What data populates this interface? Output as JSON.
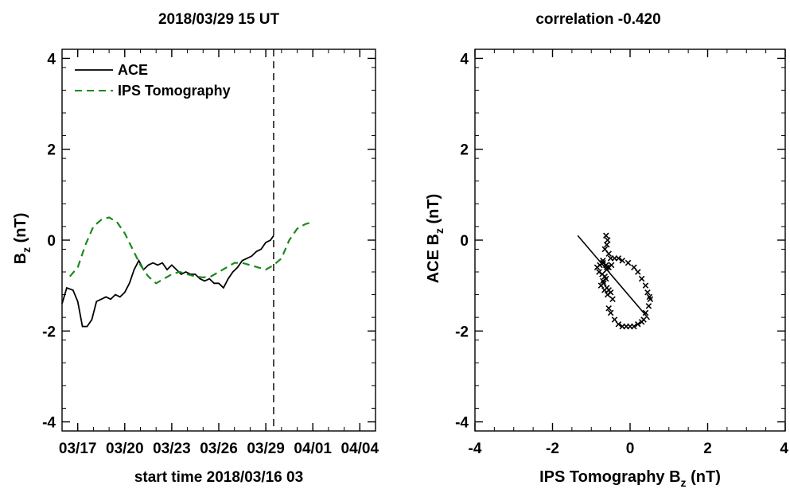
{
  "chart_data": [
    {
      "type": "line",
      "title": "2018/03/29 15 UT",
      "xlabel": "start time 2018/03/16 03",
      "ylabel": {
        "text": "B",
        "sub": "z",
        "unit": " (nT)"
      },
      "xlim": [
        0,
        20
      ],
      "ylim": [
        -4.2,
        4.2
      ],
      "x_tick_labels": [
        "03/17",
        "03/20",
        "03/23",
        "03/26",
        "03/29",
        "04/01",
        "04/04"
      ],
      "x_tick_values": [
        1,
        4,
        7,
        10,
        13,
        16,
        19
      ],
      "y_ticks": [
        -4,
        -2,
        0,
        2,
        4
      ],
      "marker_day": 13.5,
      "legend_position": "top-left",
      "series": [
        {
          "name": "ACE",
          "color": "#000000",
          "style": "solid",
          "x": [
            0,
            0.3,
            0.7,
            1.0,
            1.3,
            1.6,
            1.9,
            2.2,
            2.5,
            2.8,
            3.1,
            3.4,
            3.7,
            4.0,
            4.3,
            4.6,
            4.9,
            5.2,
            5.5,
            5.8,
            6.1,
            6.4,
            6.7,
            7.0,
            7.3,
            7.6,
            7.9,
            8.2,
            8.5,
            8.8,
            9.1,
            9.4,
            9.7,
            10.0,
            10.3,
            10.6,
            10.9,
            11.2,
            11.5,
            11.8,
            12.1,
            12.4,
            12.7,
            13.0,
            13.3,
            13.5
          ],
          "y": [
            -1.4,
            -1.05,
            -1.1,
            -1.35,
            -1.9,
            -1.9,
            -1.75,
            -1.35,
            -1.3,
            -1.25,
            -1.3,
            -1.2,
            -1.25,
            -1.15,
            -0.95,
            -0.65,
            -0.45,
            -0.65,
            -0.55,
            -0.5,
            -0.55,
            -0.5,
            -0.65,
            -0.55,
            -0.65,
            -0.75,
            -0.7,
            -0.75,
            -0.75,
            -0.85,
            -0.9,
            -0.85,
            -0.95,
            -0.95,
            -1.05,
            -0.85,
            -0.7,
            -0.6,
            -0.45,
            -0.4,
            -0.35,
            -0.25,
            -0.2,
            -0.05,
            0.0,
            0.1
          ]
        },
        {
          "name": "IPS Tomography",
          "color": "#1a8a1a",
          "style": "dashed",
          "x": [
            0.5,
            1.0,
            1.5,
            2.0,
            2.5,
            3.0,
            3.5,
            4.0,
            4.5,
            5.0,
            5.5,
            6.0,
            6.5,
            7.0,
            7.5,
            8.0,
            8.5,
            9.0,
            9.5,
            10.0,
            10.5,
            11.0,
            11.5,
            12.0,
            12.5,
            13.0,
            13.5,
            14.0,
            14.5,
            15.0,
            15.5,
            16.0
          ],
          "y": [
            -0.8,
            -0.6,
            -0.1,
            0.3,
            0.45,
            0.5,
            0.4,
            0.15,
            -0.2,
            -0.55,
            -0.8,
            -0.95,
            -0.85,
            -0.75,
            -0.7,
            -0.75,
            -0.8,
            -0.82,
            -0.8,
            -0.7,
            -0.6,
            -0.5,
            -0.5,
            -0.55,
            -0.6,
            -0.65,
            -0.55,
            -0.4,
            0.0,
            0.25,
            0.35,
            0.4
          ]
        }
      ]
    },
    {
      "type": "scatter",
      "title": "correlation -0.420",
      "xlabel": {
        "text": "IPS Tomography B",
        "sub": "z",
        "unit": " (nT)"
      },
      "ylabel": {
        "text": "ACE B",
        "sub": "z",
        "unit": " (nT)"
      },
      "xlim": [
        -4,
        4
      ],
      "ylim": [
        -4.2,
        4.2
      ],
      "x_ticks": [
        -4,
        -2,
        0,
        2,
        4
      ],
      "y_ticks": [
        -4,
        -2,
        0,
        2,
        4
      ],
      "fit_line": {
        "x": [
          -1.35,
          0.5
        ],
        "y": [
          0.1,
          -1.75
        ]
      },
      "points": {
        "x": [
          -0.62,
          -0.58,
          -0.6,
          -0.65,
          -0.55,
          -0.5,
          -0.7,
          -0.62,
          -0.48,
          -0.55,
          -0.6,
          -0.78,
          -0.85,
          -0.8,
          -0.72,
          -0.65,
          -0.7,
          -0.75,
          -0.6,
          -0.55,
          -0.5,
          -0.58,
          -0.66,
          -0.68,
          -0.62,
          -0.4,
          -0.3,
          -0.2,
          -0.05,
          0.1,
          0.2,
          0.3,
          0.4,
          0.45,
          0.5,
          0.52,
          0.48,
          0.4,
          0.35,
          0.3,
          0.2,
          0.1,
          0.0,
          -0.1,
          -0.2,
          -0.3,
          -0.4,
          -0.5,
          -0.55,
          -0.45,
          -0.6,
          -0.7
        ],
        "y": [
          0.1,
          0.0,
          -0.1,
          -0.2,
          -0.3,
          -0.4,
          -0.5,
          -0.55,
          -0.55,
          -0.6,
          -0.65,
          -0.55,
          -0.6,
          -0.7,
          -0.75,
          -0.8,
          -0.9,
          -1.0,
          -1.05,
          -1.1,
          -1.15,
          -1.2,
          -1.1,
          -0.95,
          -0.85,
          -0.4,
          -0.4,
          -0.45,
          -0.5,
          -0.6,
          -0.7,
          -0.85,
          -1.0,
          -1.15,
          -1.25,
          -1.3,
          -1.45,
          -1.6,
          -1.75,
          -1.8,
          -1.85,
          -1.9,
          -1.9,
          -1.9,
          -1.9,
          -1.85,
          -1.75,
          -1.6,
          -1.5,
          -1.3,
          -0.6,
          -0.45
        ]
      }
    }
  ]
}
